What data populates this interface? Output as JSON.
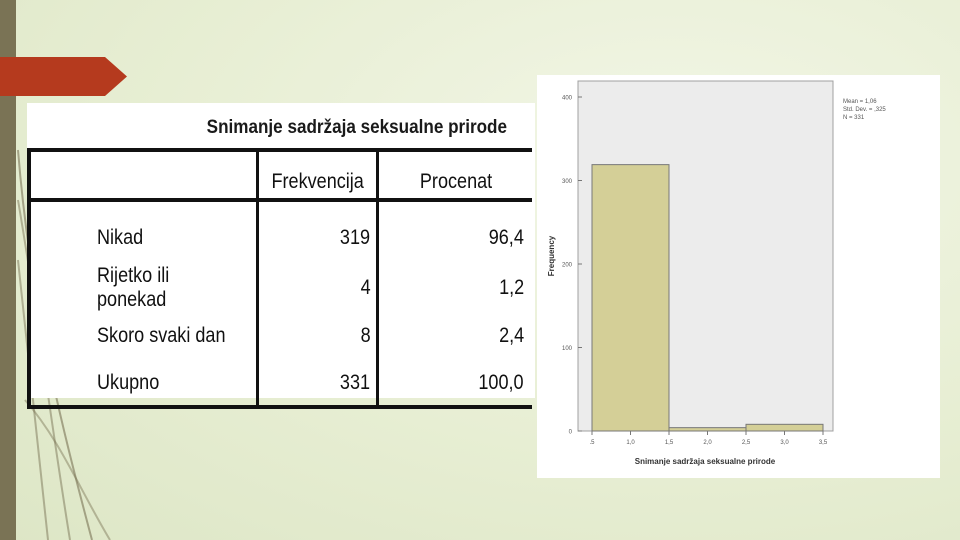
{
  "table": {
    "title": "Snimanje sadržaja seksualne prirode",
    "columns": [
      "Frekvencija",
      "Procenat"
    ],
    "rows": [
      {
        "label": "Nikad",
        "freq": "319",
        "pct": "96,4"
      },
      {
        "label": "Rijetko ili ponekad",
        "freq": "4",
        "pct": "1,2"
      },
      {
        "label": "Skoro svaki dan",
        "freq": "8",
        "pct": "2,4"
      },
      {
        "label": "Ukupno",
        "freq": "331",
        "pct": "100,0"
      }
    ]
  },
  "chart_data": {
    "type": "bar",
    "xlabel": "Snimanje sadržaja seksualne prirode",
    "ylabel": "Frequency",
    "stats": [
      "Mean = 1,06",
      "Std. Dev. = ,325",
      "N = 331"
    ],
    "bins": [
      {
        "from": 0.5,
        "to": 1.5,
        "value": 319
      },
      {
        "from": 1.5,
        "to": 2.5,
        "value": 4
      },
      {
        "from": 2.5,
        "to": 3.5,
        "value": 8
      }
    ],
    "xticks": [
      ".5",
      "1,0",
      "1,5",
      "2,0",
      "2,5",
      "3,0",
      "3,5"
    ],
    "xtick_values": [
      0.5,
      1.0,
      1.5,
      2.0,
      2.5,
      3.0,
      3.5
    ],
    "yticks": [
      0,
      100,
      200,
      300,
      400
    ],
    "xlim": [
      0.5,
      3.5
    ],
    "ylim": [
      0,
      400
    ],
    "bar_color": "#d4cf97",
    "plot_bg": "#ececec"
  }
}
